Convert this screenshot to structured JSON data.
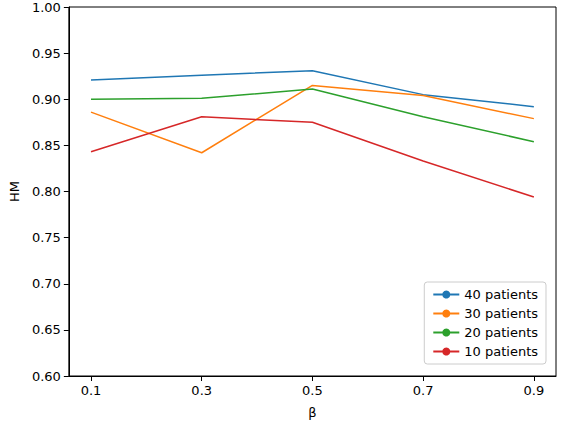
{
  "chart_data": {
    "type": "line",
    "x_label": "β",
    "y_label": "HM",
    "x": [
      0.1,
      0.3,
      0.5,
      0.7,
      0.9
    ],
    "xlim": [
      0.06,
      0.94
    ],
    "xticks": [
      0.1,
      0.3,
      0.5,
      0.7,
      0.9
    ],
    "ylim": [
      0.6,
      1.0
    ],
    "yticks": [
      {
        "value": 0.6,
        "label": "0.60"
      },
      {
        "value": 0.65,
        "label": "0.65"
      },
      {
        "value": 0.7,
        "label": "0.70"
      },
      {
        "value": 0.75,
        "label": "0.75"
      },
      {
        "value": 0.8,
        "label": "0.80"
      },
      {
        "value": 0.85,
        "label": "0.85"
      },
      {
        "value": 0.9,
        "label": "0.90"
      },
      {
        "value": 0.95,
        "label": "0.95"
      },
      {
        "value": 1.0,
        "label": "1.00"
      }
    ],
    "grid": false,
    "legend": "lower right",
    "series": [
      {
        "name": "40 patients",
        "color": "#1f77b4",
        "values": [
          0.921,
          0.926,
          0.931,
          0.905,
          0.892
        ]
      },
      {
        "name": "30 patients",
        "color": "#ff7f0e",
        "values": [
          0.886,
          0.842,
          0.915,
          0.904,
          0.879
        ]
      },
      {
        "name": "20 patients",
        "color": "#2ca02c",
        "values": [
          0.9,
          0.901,
          0.911,
          0.881,
          0.854
        ]
      },
      {
        "name": "10 patients",
        "color": "#d62728",
        "values": [
          0.843,
          0.881,
          0.875,
          0.833,
          0.794
        ]
      }
    ]
  }
}
